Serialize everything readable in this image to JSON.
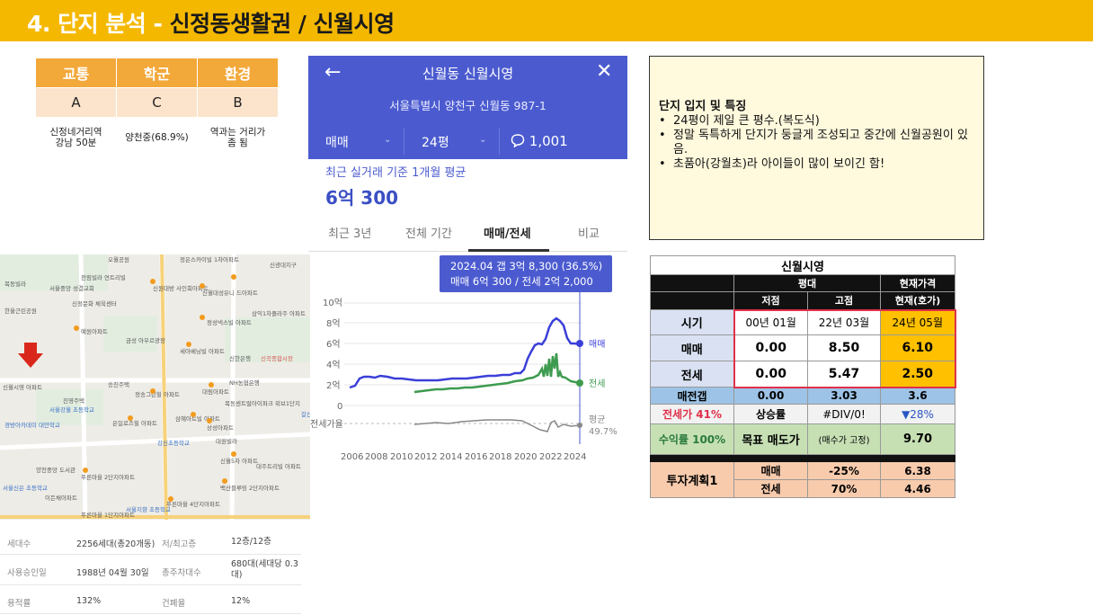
{
  "banner": {
    "prefix": "4. 단지 분석 - ",
    "title": "신정동생활권 /  신월시영"
  },
  "score_table": {
    "headers": [
      "교통",
      "학군",
      "환경"
    ],
    "grades": [
      "A",
      "C",
      "B"
    ],
    "details": [
      [
        "신정네거리역",
        "강남 50분"
      ],
      [
        "양천중(68.9%)"
      ],
      [
        "역과는 거리가",
        "좀 됨"
      ]
    ],
    "colors": {
      "header": "#f3a83a",
      "grade_row": "#fbe3cc"
    }
  },
  "mobile": {
    "title": "신월동 신월시영",
    "address": "서울특별시 양천구 신월동 987-1",
    "filter_trade": "매매",
    "filter_size": "24평",
    "comment_count": "1,001",
    "avg_label": "최근 실거래 기준 1개월 평균",
    "avg_value": "6억 300",
    "tabs": [
      "최근 3년",
      "전체 기간",
      "매매/전세",
      "비교"
    ],
    "active_tab": "매매/전세",
    "tooltip_line1": "2024.04  갭 3억 8,300 (36.5%)",
    "tooltip_line2": "매매 6억 300 / 전세 2억 2,000",
    "y_ticks": [
      "10억",
      "8억",
      "6억",
      "4억",
      "2억",
      "0"
    ],
    "x_ticks": [
      "2006",
      "2008",
      "2010",
      "2012",
      "2014",
      "2016",
      "2018",
      "2020",
      "2022",
      "2024"
    ],
    "legend_sale": "매매",
    "legend_jeonse": "전세",
    "ratio_label": "전세가율",
    "ratio_avg_label": "평균",
    "ratio_avg_value": "49.7%",
    "colors": {
      "header": "#4b5bcf",
      "sale": "#3a3fd8",
      "jeonse": "#3e9b4f",
      "ratio": "#888888"
    }
  },
  "info_box": {
    "heading": "단지 입지 및 특징",
    "bullets": [
      "24평이 제일 큰 평수.(복도식)",
      "정말 독특하게 단지가 둥글게 조성되고 중간에 신월공원이 있음.",
      "초품아(강월초)라 아이들이 많이 보이긴 함!"
    ]
  },
  "price_table": {
    "caption": "신월시영",
    "col_group_avg": "평대",
    "col_group_now": "현재가격",
    "sub_low": "저점",
    "sub_high": "고점",
    "sub_now": "현재(호가)",
    "rows": [
      {
        "label": "시기",
        "low": "00년 01월",
        "high": "22년 03월",
        "now": "24년 05월"
      },
      {
        "label": "매매",
        "low": "0.00",
        "high": "8.50",
        "now": "6.10"
      },
      {
        "label": "전세",
        "low": "0.00",
        "high": "5.47",
        "now": "2.50"
      }
    ],
    "gap_label": "매전갭",
    "gap_low": "0.00",
    "gap_high": "3.03",
    "gap_now": "3.6",
    "jeonse_ratio_label": "전세가 41%",
    "rise_label": "상승률",
    "rise_value": "#DIV/0!",
    "rise_now": "▼28%",
    "yield_label": "수익률 100%",
    "target_label": "목표 매도가",
    "target_note": "(매수가 고정)",
    "target_value": "9.70",
    "plan_label": "투자계획1",
    "plan_rows": [
      {
        "name": "매매",
        "pct": "-25%",
        "value": "6.38"
      },
      {
        "name": "전세",
        "pct": "70%",
        "value": "4.46"
      }
    ],
    "colors": {
      "now": "#ffc000",
      "gap": "#9dc3e6",
      "yield": "#c6e0b4",
      "plan": "#f8cbad",
      "highlight_border": "#e0304a"
    }
  },
  "map": {
    "labels": [
      "오월공원",
      "정은스카이빌 1차아파트",
      "신광대지구",
      "목동빌라",
      "전림빌라 연트리빌",
      "서울중앙 성결교회",
      "신정문화 체육센터",
      "신원대방 사인회아파트",
      "신월대성유니 드아파트",
      "삼익1차플라주 아파트",
      "한울근린공원",
      "예원아파트",
      "금성 아우르광장",
      "정성넥스빌 아파트",
      "세아베닝빌 아파트",
      "신한은행",
      "신곡종합시장",
      "승진주택",
      "정송그린힐 아파트",
      "대림아파트",
      "NH농협은행",
      "신월시영 아파트",
      "진영주택",
      "서울강월 초등학교",
      "은일로즈힐 아파트",
      "삼혜아트빌 아파트",
      "상성아파트",
      "목동센트럴아이파크 위브1단지",
      "갈산초등학교",
      "강신초등학교",
      "대원빌라",
      "신월5차 아파트",
      "대주트리빌 아파트",
      "양천중앙 도서관",
      "푸른마을 2단지아파트",
      "백산블루밍 2단지아파트",
      "이든채아파트",
      "푸른마을 4단지아파트",
      "서울지향 초등학교",
      "푸른마을 1단지아파트",
      "경방아카데미 대안학교",
      "서울신은 초등학교"
    ],
    "pin_name": "신월시영 아파트"
  },
  "stats": [
    {
      "k1": "세대수",
      "v1": "2256세대(총20개동)",
      "k2": "저/최고층",
      "v2": "12층/12층"
    },
    {
      "k1": "사용승인일",
      "v1": "1988년 04월 30일",
      "k2": "총주차대수",
      "v2": "680대(세대당 0.3대)"
    },
    {
      "k1": "용적률",
      "v1": "132%",
      "k2": "건폐율",
      "v2": "12%"
    }
  ]
}
